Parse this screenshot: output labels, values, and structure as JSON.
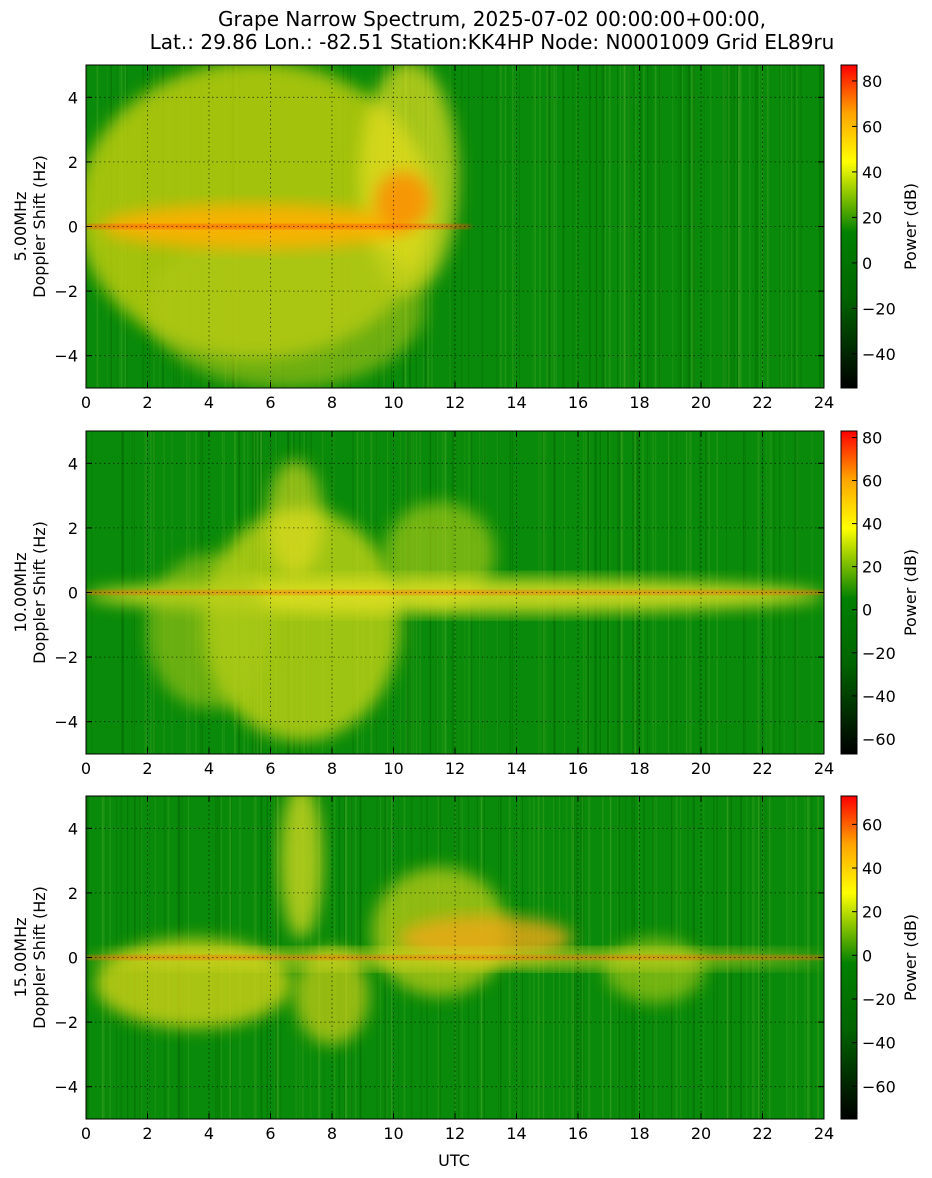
{
  "figure": {
    "title_line1": "Grape Narrow Spectrum, 2025-07-02 00:00:00+00:00,",
    "title_line2": "Lat.: 29.86 Lon.: -82.51 Station:KK4HP Node: N0001009 Grid EL89ru",
    "xlabel": "UTC"
  },
  "colors": {
    "background": "#ffffff",
    "colormap": [
      "#000000",
      "#006400",
      "#008000",
      "#ffff00",
      "#ffa500",
      "#ff0000"
    ]
  },
  "chart_data": [
    {
      "type": "heatmap",
      "band_label": "5.00MHz",
      "ylabel": "Doppler Shift (Hz)",
      "colorbar_label": "Power (dB)",
      "xlim": [
        0,
        24
      ],
      "ylim": [
        -5,
        5
      ],
      "xticks": [
        "0",
        "2",
        "4",
        "6",
        "8",
        "10",
        "12",
        "14",
        "16",
        "18",
        "20",
        "22",
        "24"
      ],
      "yticks": [
        "4",
        "2",
        "0",
        "−2",
        "−4"
      ],
      "colorbar_range": [
        -55,
        87
      ],
      "colorbar_ticks": [
        "80",
        "60",
        "40",
        "20",
        "0",
        "−20",
        "−40"
      ],
      "grid": true
    },
    {
      "type": "heatmap",
      "band_label": "10.00MHz",
      "ylabel": "Doppler Shift (Hz)",
      "colorbar_label": "Power (dB)",
      "xlim": [
        0,
        24
      ],
      "ylim": [
        -5,
        5
      ],
      "xticks": [
        "0",
        "2",
        "4",
        "6",
        "8",
        "10",
        "12",
        "14",
        "16",
        "18",
        "20",
        "22",
        "24"
      ],
      "yticks": [
        "4",
        "2",
        "0",
        "−2",
        "−4"
      ],
      "colorbar_range": [
        -67,
        83
      ],
      "colorbar_ticks": [
        "80",
        "60",
        "40",
        "20",
        "0",
        "−20",
        "−40",
        "−60"
      ],
      "grid": true
    },
    {
      "type": "heatmap",
      "band_label": "15.00MHz",
      "ylabel": "Doppler Shift (Hz)",
      "colorbar_label": "Power (dB)",
      "xlim": [
        0,
        24
      ],
      "ylim": [
        -5,
        5
      ],
      "xticks": [
        "0",
        "2",
        "4",
        "6",
        "8",
        "10",
        "12",
        "14",
        "16",
        "18",
        "20",
        "22",
        "24"
      ],
      "yticks": [
        "4",
        "2",
        "0",
        "−2",
        "−4"
      ],
      "colorbar_range": [
        -75,
        73
      ],
      "colorbar_ticks": [
        "60",
        "40",
        "20",
        "0",
        "−20",
        "−40",
        "−60"
      ],
      "grid": true
    }
  ]
}
